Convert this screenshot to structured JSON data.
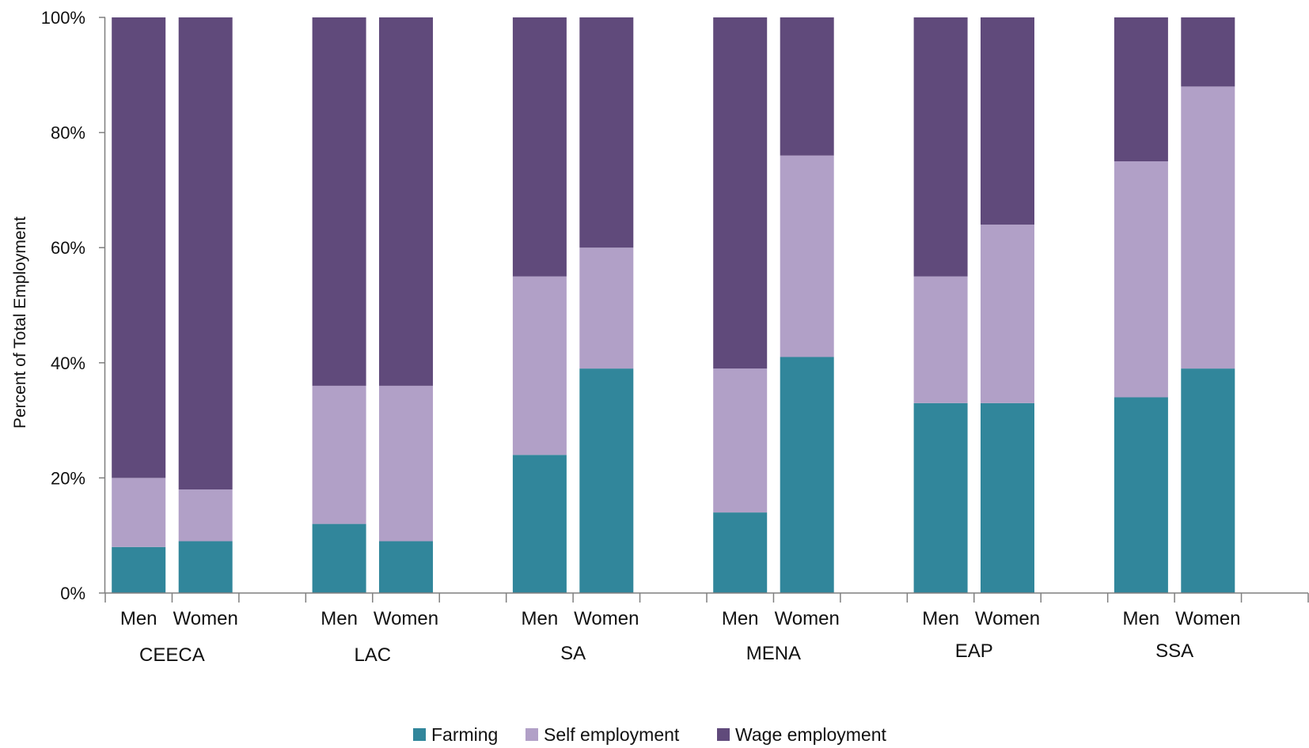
{
  "chart_data": {
    "type": "bar",
    "stacked": true,
    "percent": true,
    "title": "",
    "xlabel": "",
    "ylabel": "Percent of Total Employment",
    "ylim": [
      0,
      100
    ],
    "yticks": [
      "0%",
      "20%",
      "40%",
      "60%",
      "80%",
      "100%"
    ],
    "groups": [
      "CEECA",
      "LAC",
      "SA",
      "MENA",
      "EAP",
      "SSA"
    ],
    "subcategories": [
      "Men",
      "Women"
    ],
    "categories": [
      "CEECA Men",
      "CEECA Women",
      "LAC Men",
      "LAC Women",
      "SA Men",
      "SA Women",
      "MENA Men",
      "MENA Women",
      "EAP Men",
      "EAP Women",
      "SSA Men",
      "SSA Women"
    ],
    "series": [
      {
        "name": "Farming",
        "color": "#31869b",
        "values": [
          8,
          9,
          12,
          9,
          24,
          39,
          14,
          41,
          33,
          33,
          34,
          39
        ]
      },
      {
        "name": "Self employment",
        "color": "#b1a0c7",
        "values": [
          12,
          9,
          24,
          27,
          31,
          21,
          25,
          35,
          22,
          31,
          41,
          49
        ]
      },
      {
        "name": "Wage employment",
        "color": "#604a7b",
        "values": [
          80,
          82,
          64,
          64,
          45,
          40,
          61,
          24,
          45,
          36,
          25,
          12
        ]
      }
    ],
    "legend_position": "bottom",
    "grid": false
  }
}
